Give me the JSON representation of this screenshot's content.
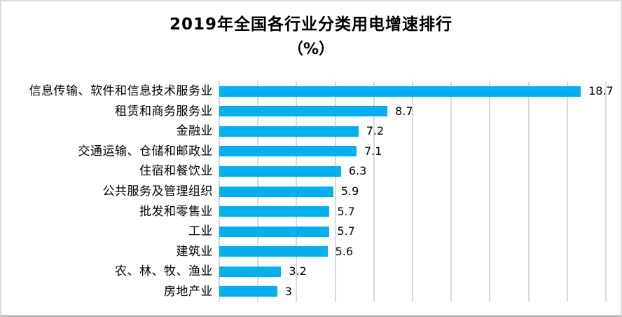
{
  "title": {
    "line1": "2019年全国各行业分类用电增速排行",
    "line2": "（%）"
  },
  "colors": {
    "bar": "#00b0f0",
    "gridline": "#d9d9d9",
    "text": "#000000",
    "background": "#ffffff",
    "border": "#dcdcdc"
  },
  "chart_data": {
    "type": "bar",
    "orientation": "horizontal",
    "title": "2019年全国各行业分类用电增速排行（%）",
    "categories": [
      "信息传输、软件和信息技术服务业",
      "租赁和商务服务业",
      "金融业",
      "交通运输、仓储和邮政业",
      "住宿和餐饮业",
      "公共服务及管理组织",
      "批发和零售业",
      "工业",
      "建筑业",
      "农、林、牧、渔业",
      "房地产业"
    ],
    "values": [
      18.7,
      8.7,
      7.2,
      7.1,
      6.3,
      5.9,
      5.7,
      5.7,
      5.6,
      3.2,
      3
    ],
    "value_labels": [
      "18.7",
      "8.7",
      "7.2",
      "7.1",
      "6.3",
      "5.9",
      "5.7",
      "5.7",
      "5.6",
      "3.2",
      "3"
    ],
    "xlabel": "",
    "ylabel": "",
    "xlim": [
      0,
      20
    ],
    "gridline_step": 2,
    "grid": "vertical gridlines on",
    "legend": "none",
    "data_labels": "outside end",
    "x_axis_tick_labels": "hidden"
  }
}
